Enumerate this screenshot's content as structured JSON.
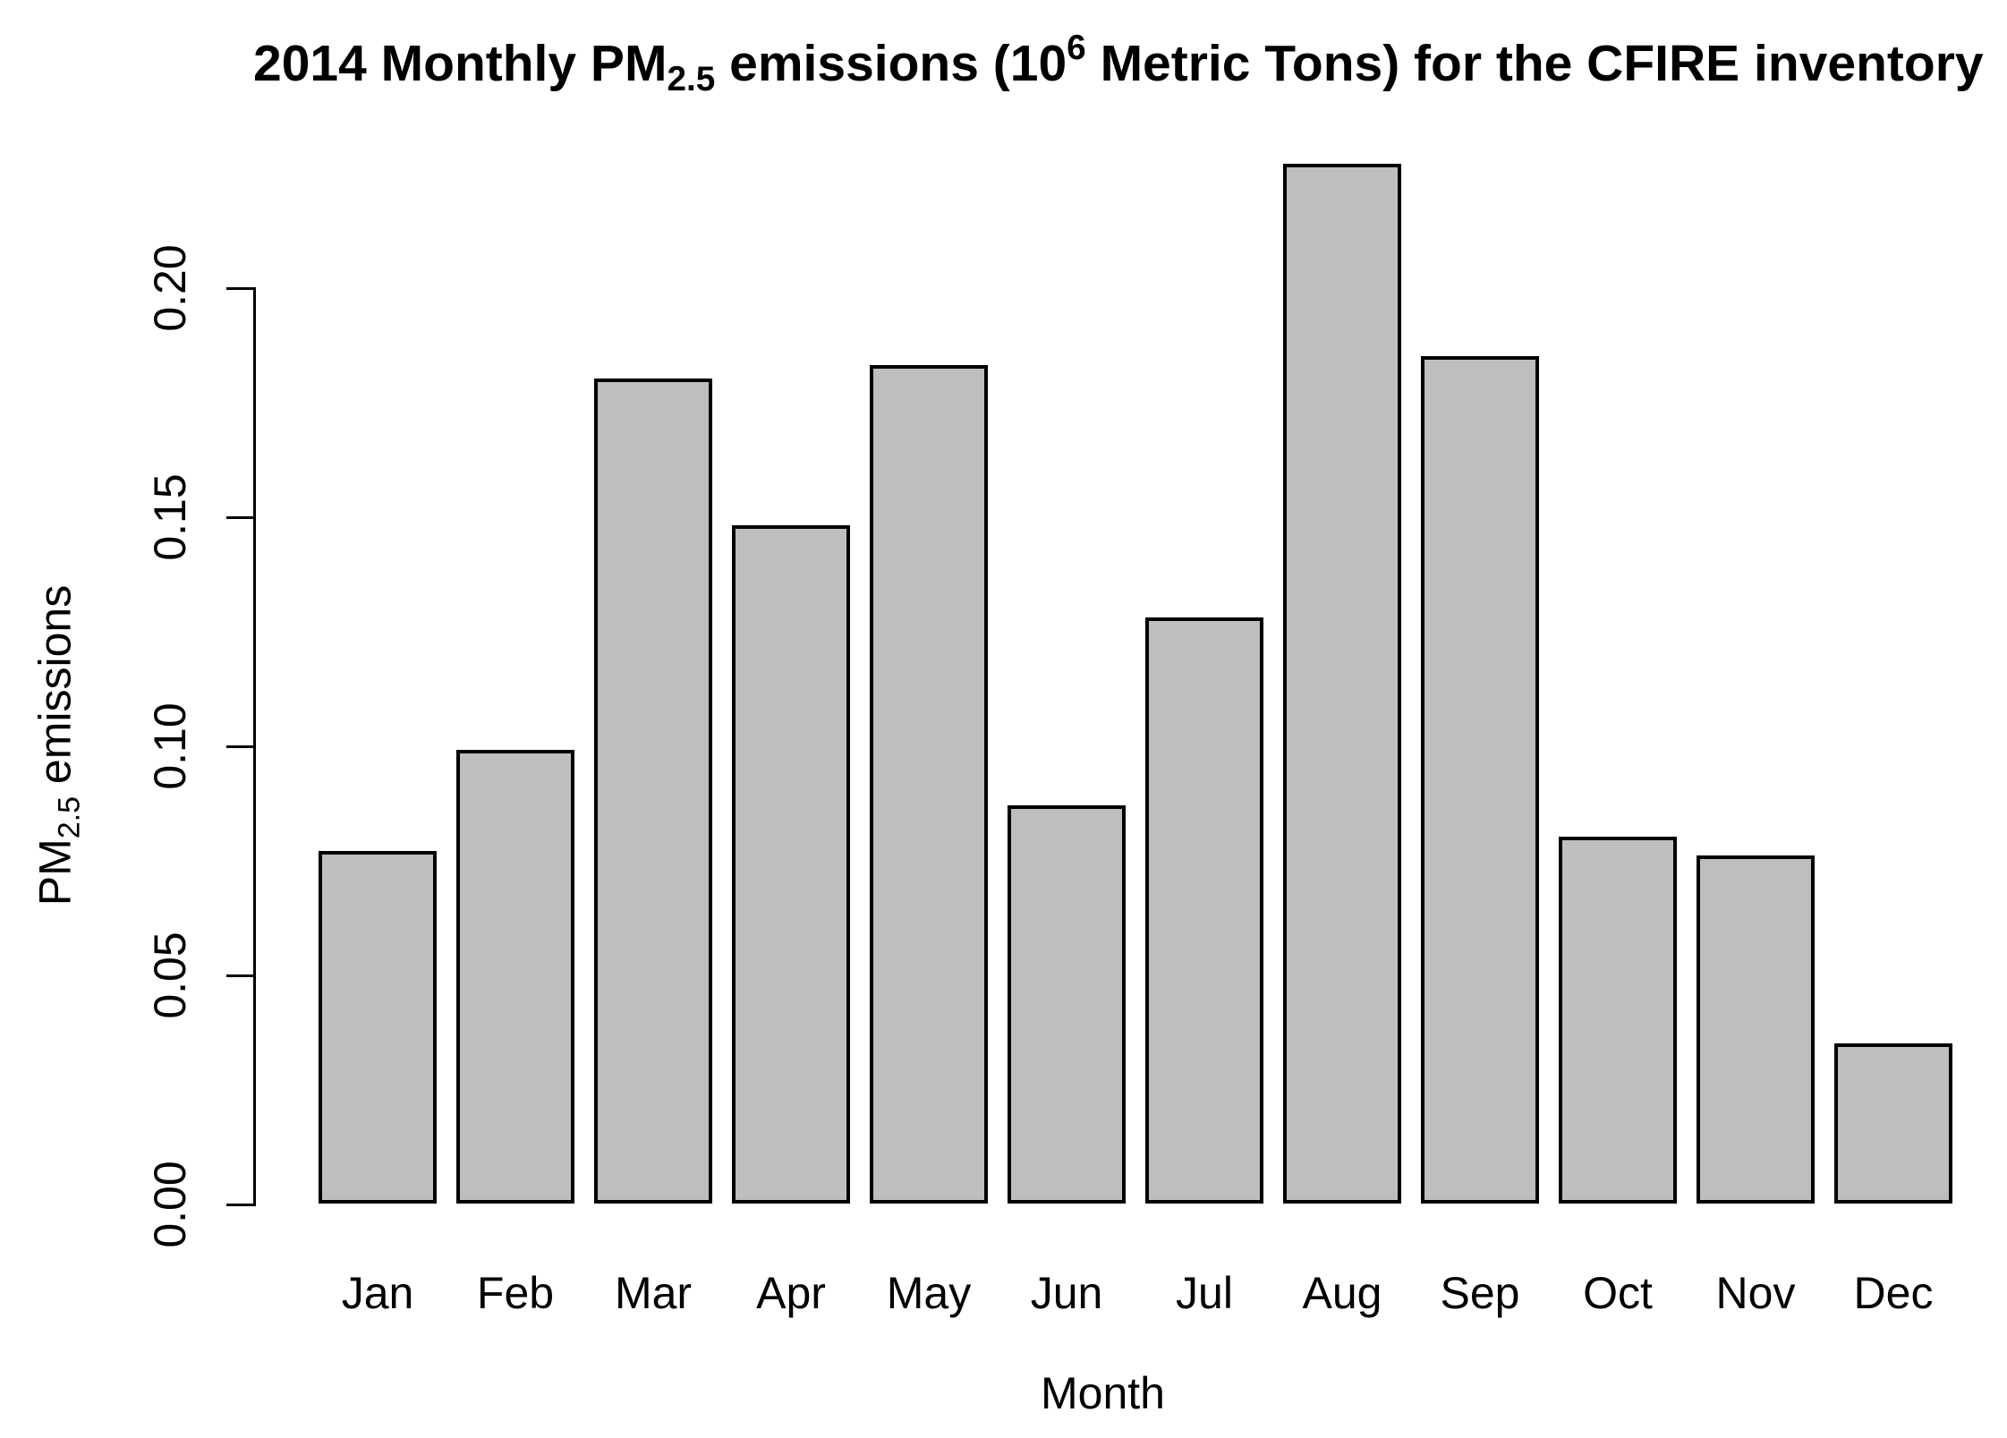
{
  "chart_data": {
    "type": "bar",
    "title_segments": [
      {
        "text": "2014 Monthly PM"
      },
      {
        "text": "2.5",
        "style": "sub"
      },
      {
        "text": " emissions (10"
      },
      {
        "text": "6",
        "style": "sup"
      },
      {
        "text": " Metric Tons) for the CFIRE inventory"
      }
    ],
    "ylabel_segments": [
      {
        "text": "PM"
      },
      {
        "text": "2.5",
        "style": "sub"
      },
      {
        "text": " emissions"
      }
    ],
    "xlabel": "Month",
    "categories": [
      "Jan",
      "Feb",
      "Mar",
      "Apr",
      "May",
      "Jun",
      "Jul",
      "Aug",
      "Sep",
      "Oct",
      "Nov",
      "Dec"
    ],
    "values": [
      0.077,
      0.099,
      0.18,
      0.148,
      0.183,
      0.087,
      0.128,
      0.227,
      0.185,
      0.08,
      0.076,
      0.035
    ],
    "y_tick_labels": [
      "0.00",
      "0.05",
      "0.10",
      "0.15",
      "0.20"
    ],
    "y_tick_values": [
      0.0,
      0.05,
      0.1,
      0.15,
      0.2
    ],
    "ylim": [
      0,
      0.235
    ],
    "grid": false,
    "legend": null,
    "bar_fill": "#bebebe",
    "bar_border": "#000000",
    "text_color": "#000000",
    "background": "#ffffff"
  }
}
